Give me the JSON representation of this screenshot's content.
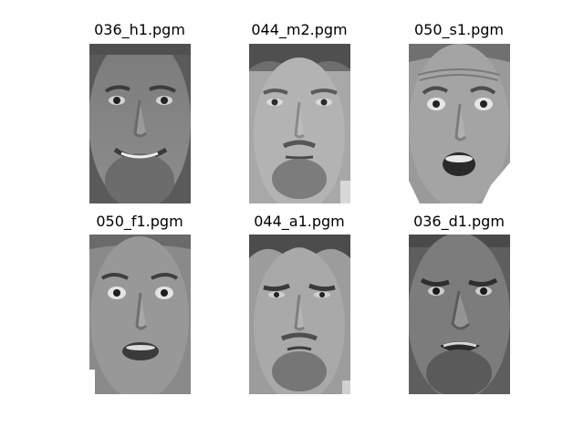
{
  "panels": [
    {
      "title": "036_h1.pgm",
      "expression": "happy"
    },
    {
      "title": "044_m2.pgm",
      "expression": "neutral"
    },
    {
      "title": "050_s1.pgm",
      "expression": "surprised"
    },
    {
      "title": "050_f1.pgm",
      "expression": "fear"
    },
    {
      "title": "044_a1.pgm",
      "expression": "angry"
    },
    {
      "title": "036_d1.pgm",
      "expression": "disgust"
    }
  ]
}
